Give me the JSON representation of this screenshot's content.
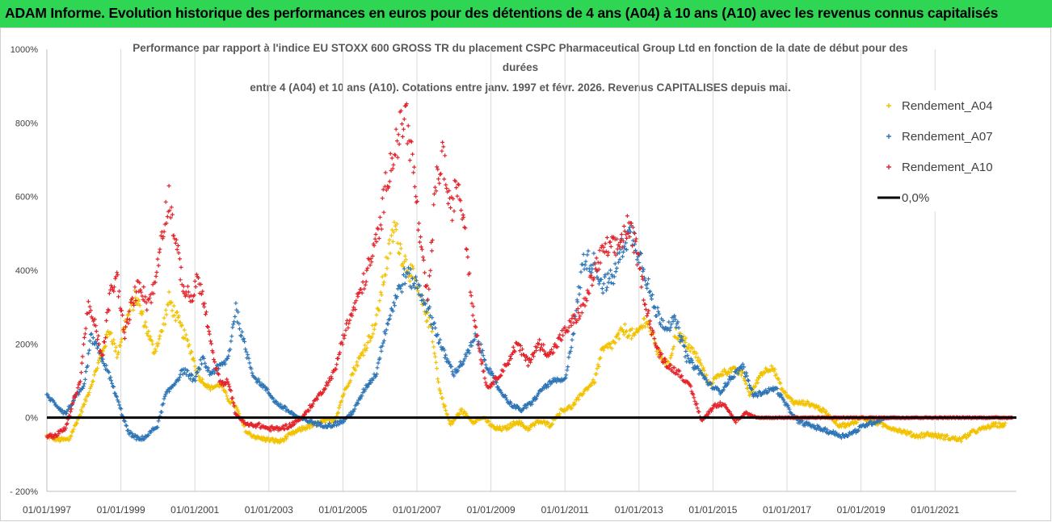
{
  "header": {
    "title": "ADAM Informe. Evolution historique des performances en euros pour des détentions de 4 ans (A04) à 10 ans (A10) avec les revenus connus capitalisés"
  },
  "colors": {
    "header_bg": "#2fd654",
    "a04": "#f2c200",
    "a07": "#2e75b6",
    "a10": "#e3242b",
    "zero": "#000000",
    "grid": "#d9d9d9"
  },
  "chart_data": {
    "type": "scatter",
    "title_lines": [
      "Performance par rapport à l'indice EU STOXX 600 GROSS TR  du placement CSPC Pharmaceutical Group Ltd en fonction de la date de début pour des",
      "durées",
      "entre 4 (A04) et 10 ans (A10).  Cotations entre janv. 1997 et févr. 2026. Revenus CAPITALISES depuis mai."
    ],
    "ylim": [
      -200,
      1000
    ],
    "y_ticks": [
      -200,
      0,
      200,
      400,
      600,
      800,
      1000
    ],
    "y_tick_labels": [
      "- 200%",
      "0%",
      "200%",
      "400%",
      "600%",
      "800%",
      "1000%"
    ],
    "xlim": [
      1997.0,
      2023.2
    ],
    "x_ticks": [
      1997,
      1999,
      2001,
      2003,
      2005,
      2007,
      2009,
      2011,
      2013,
      2015,
      2017,
      2019,
      2021
    ],
    "x_tick_labels": [
      "01/01/1997",
      "01/01/1999",
      "01/01/2001",
      "01/01/2003",
      "01/01/2005",
      "01/01/2007",
      "01/01/2009",
      "01/01/2011",
      "01/01/2013",
      "01/01/2015",
      "01/01/2017",
      "01/01/2019",
      "01/01/2021"
    ],
    "legend_position": "top-right",
    "legend": [
      "Rendement_A04",
      "Rendement_A07",
      "Rendement_A10",
      "0,0%"
    ],
    "series": [
      {
        "name": "Rendement_A04",
        "color": "#f2c200",
        "x": [
          1997.0,
          1997.3,
          1997.6,
          1997.9,
          1998.1,
          1998.4,
          1998.7,
          1998.9,
          1999.1,
          1999.4,
          1999.6,
          1999.9,
          2000.1,
          2000.3,
          2000.6,
          2000.9,
          2001.1,
          2001.4,
          2001.7,
          2001.9,
          2002.1,
          2002.4,
          2002.7,
          2003.0,
          2003.3,
          2003.6,
          2003.9,
          2004.2,
          2004.5,
          2004.8,
          2005.0,
          2005.3,
          2005.6,
          2005.9,
          2006.1,
          2006.4,
          2006.6,
          2006.9,
          2007.1,
          2007.4,
          2007.6,
          2007.9,
          2008.2,
          2008.5,
          2008.8,
          2009.1,
          2009.4,
          2009.7,
          2010.0,
          2010.3,
          2010.6,
          2010.9,
          2011.2,
          2011.5,
          2011.8,
          2012.0,
          2012.3,
          2012.6,
          2012.9,
          2013.2,
          2013.5,
          2013.8,
          2014.0,
          2014.3,
          2014.6,
          2014.9,
          2015.2,
          2015.5,
          2015.8,
          2016.0,
          2016.3,
          2016.6,
          2016.9,
          2017.2,
          2017.5,
          2017.8,
          2018.1,
          2018.4,
          2018.7,
          2019.0,
          2019.3,
          2019.6,
          2019.9,
          2020.2,
          2020.5,
          2020.8,
          2021.1,
          2021.4,
          2021.7,
          2022.0,
          2022.3,
          2022.6,
          2022.9
        ],
        "y": [
          -50,
          -60,
          -60,
          10,
          60,
          150,
          240,
          170,
          250,
          330,
          270,
          180,
          230,
          320,
          250,
          180,
          110,
          80,
          90,
          50,
          30,
          -40,
          -55,
          -60,
          -65,
          -45,
          -30,
          -20,
          -10,
          -5,
          60,
          130,
          190,
          260,
          380,
          520,
          440,
          380,
          320,
          240,
          80,
          -20,
          20,
          -10,
          0,
          -30,
          -30,
          -10,
          -30,
          -10,
          -20,
          20,
          30,
          70,
          100,
          180,
          200,
          240,
          220,
          270,
          180,
          140,
          230,
          200,
          160,
          90,
          120,
          130,
          120,
          60,
          120,
          140,
          70,
          40,
          40,
          30,
          10,
          -20,
          -20,
          0,
          -10,
          -20,
          -30,
          -40,
          -50,
          -45,
          -50,
          -55,
          -60,
          -40,
          -30,
          -20,
          -20
        ]
      },
      {
        "name": "Rendement_A07",
        "color": "#2e75b6",
        "x": [
          1997.0,
          1997.2,
          1997.5,
          1997.8,
          1998.0,
          1998.2,
          1998.5,
          1998.7,
          1999.0,
          1999.2,
          1999.5,
          1999.7,
          2000.0,
          2000.2,
          2000.5,
          2000.7,
          2001.0,
          2001.2,
          2001.4,
          2001.7,
          2001.9,
          2002.1,
          2002.3,
          2002.6,
          2002.9,
          2003.2,
          2003.5,
          2003.8,
          2004.1,
          2004.4,
          2004.7,
          2005.0,
          2005.3,
          2005.6,
          2005.9,
          2006.1,
          2006.4,
          2006.7,
          2007.0,
          2007.2,
          2007.5,
          2007.7,
          2008.0,
          2008.3,
          2008.6,
          2008.9,
          2009.2,
          2009.5,
          2009.8,
          2010.1,
          2010.4,
          2010.7,
          2011.0,
          2011.2,
          2011.5,
          2011.8,
          2012.0,
          2012.3,
          2012.6,
          2012.8,
          2013.1,
          2013.4,
          2013.7,
          2014.0,
          2014.3,
          2014.6,
          2014.9,
          2015.2,
          2015.5,
          2015.8,
          2016.1,
          2016.4,
          2016.7,
          2017.0,
          2017.3,
          2017.6,
          2017.9,
          2018.2,
          2018.5,
          2018.8,
          2019.1,
          2019.4,
          2019.7,
          2020.0
        ],
        "y": [
          60,
          40,
          10,
          60,
          80,
          220,
          160,
          110,
          20,
          -40,
          -60,
          -50,
          -20,
          60,
          100,
          130,
          100,
          160,
          120,
          140,
          160,
          300,
          210,
          110,
          80,
          40,
          20,
          0,
          -10,
          -20,
          -20,
          -10,
          20,
          80,
          120,
          220,
          320,
          390,
          360,
          320,
          240,
          180,
          120,
          160,
          220,
          140,
          80,
          40,
          20,
          40,
          80,
          100,
          100,
          220,
          430,
          420,
          360,
          380,
          480,
          500,
          420,
          300,
          250,
          260,
          160,
          130,
          90,
          70,
          110,
          140,
          60,
          70,
          80,
          30,
          -10,
          -20,
          -30,
          -40,
          -50,
          -40,
          -20,
          -10,
          0,
          0
        ]
      },
      {
        "name": "Rendement_A10",
        "color": "#e3242b",
        "x": [
          1997.0,
          1997.2,
          1997.5,
          1997.7,
          1997.9,
          1998.1,
          1998.3,
          1998.5,
          1998.7,
          1998.9,
          1999.1,
          1999.3,
          1999.5,
          1999.7,
          1999.9,
          2000.1,
          2000.3,
          2000.5,
          2000.7,
          2000.9,
          2001.1,
          2001.3,
          2001.5,
          2001.7,
          2001.9,
          2002.1,
          2002.4,
          2002.7,
          2003.0,
          2003.3,
          2003.6,
          2003.9,
          2004.2,
          2004.5,
          2004.8,
          2005.0,
          2005.2,
          2005.5,
          2005.8,
          2006.0,
          2006.2,
          2006.5,
          2006.7,
          2006.9,
          2007.1,
          2007.3,
          2007.5,
          2007.7,
          2007.9,
          2008.1,
          2008.3,
          2008.5,
          2008.7,
          2008.9,
          2009.1,
          2009.4,
          2009.7,
          2010.0,
          2010.3,
          2010.6,
          2010.9,
          2011.2,
          2011.5,
          2011.8,
          2012.1,
          2012.4,
          2012.7,
          2012.9,
          2013.2,
          2013.5,
          2013.8,
          2014.1,
          2014.4,
          2014.7,
          2015.0,
          2015.3,
          2015.6,
          2015.9,
          2016.2,
          2016.5,
          2016.8,
          2017.1,
          2017.4,
          2017.7,
          2018.0,
          2018.3,
          2018.6,
          2018.9,
          2019.2,
          2019.5,
          2019.8,
          2020.1,
          2020.4,
          2020.7,
          2021.0,
          2021.3,
          2021.6,
          2021.9,
          2022.2,
          2022.5,
          2022.8,
          2023.1
        ],
        "y": [
          -50,
          -50,
          -30,
          40,
          100,
          300,
          250,
          160,
          330,
          380,
          220,
          310,
          370,
          310,
          350,
          500,
          600,
          460,
          350,
          320,
          380,
          280,
          160,
          90,
          100,
          10,
          -20,
          -20,
          -30,
          -30,
          -20,
          0,
          40,
          80,
          130,
          220,
          270,
          350,
          440,
          520,
          660,
          760,
          830,
          680,
          460,
          320,
          620,
          720,
          550,
          640,
          520,
          300,
          180,
          80,
          100,
          140,
          200,
          150,
          200,
          170,
          220,
          260,
          300,
          400,
          460,
          460,
          520,
          470,
          300,
          180,
          140,
          120,
          80,
          -10,
          30,
          40,
          -10,
          10,
          0,
          0,
          0,
          0,
          0,
          0,
          0,
          0,
          0,
          0,
          0,
          0,
          0,
          0,
          0,
          0,
          0,
          0,
          0,
          0,
          0,
          0,
          0,
          0
        ]
      }
    ]
  }
}
